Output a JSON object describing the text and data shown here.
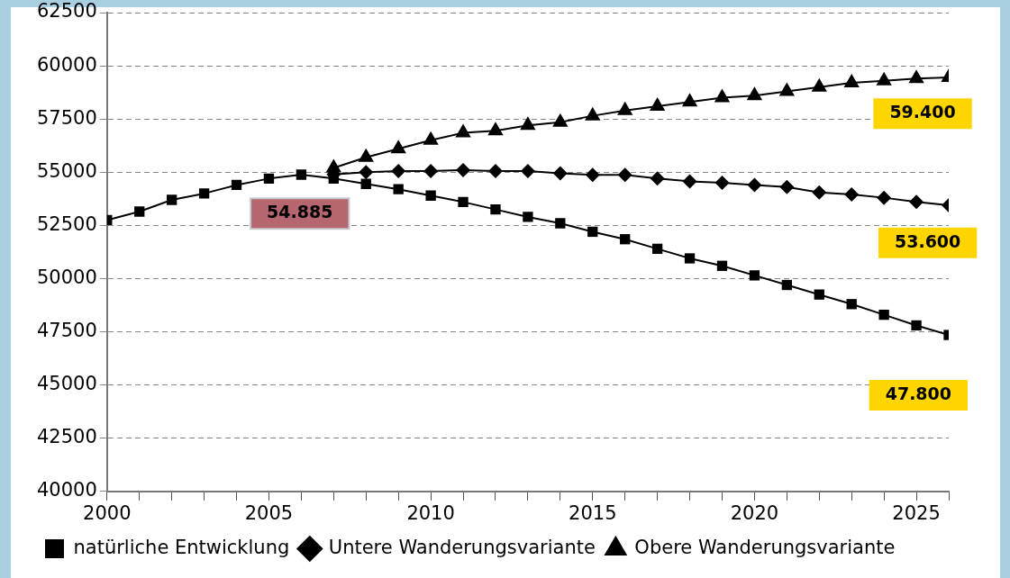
{
  "chart_data": {
    "type": "line",
    "x": [
      2000,
      2001,
      2002,
      2003,
      2004,
      2005,
      2006,
      2007,
      2008,
      2009,
      2010,
      2011,
      2012,
      2013,
      2014,
      2015,
      2016,
      2017,
      2018,
      2019,
      2020,
      2021,
      2022,
      2023,
      2024,
      2025,
      2026
    ],
    "series": [
      {
        "name": "natürliche Entwicklung",
        "color": "#000000",
        "marker": "square",
        "values": [
          52750,
          53150,
          53700,
          54000,
          54400,
          54700,
          54885,
          54700,
          54450,
          54200,
          53900,
          53600,
          53250,
          52900,
          52600,
          52200,
          51850,
          51400,
          50950,
          50600,
          50150,
          49700,
          49250,
          48800,
          48300,
          47800,
          47350
        ]
      },
      {
        "name": "Untere Wanderungsvariante",
        "color": "#000000",
        "marker": "diamond",
        "values": [
          null,
          null,
          null,
          null,
          null,
          null,
          null,
          54900,
          55000,
          55050,
          55050,
          55100,
          55050,
          55050,
          54950,
          54870,
          54870,
          54700,
          54570,
          54500,
          54400,
          54300,
          54050,
          53950,
          53800,
          53600,
          53450
        ]
      },
      {
        "name": "Obere Wanderungsvariante",
        "color": "#000000",
        "marker": "triangle",
        "values": [
          null,
          null,
          null,
          null,
          null,
          null,
          null,
          55200,
          55700,
          56100,
          56500,
          56850,
          56950,
          57200,
          57350,
          57650,
          57900,
          58100,
          58300,
          58500,
          58600,
          58800,
          59000,
          59200,
          59300,
          59400,
          59450
        ]
      }
    ],
    "xlim": [
      2000,
      2026
    ],
    "xticks": [
      2000,
      {
        "value": 2001,
        "label": null
      },
      {
        "value": 2002,
        "label": null
      },
      {
        "value": 2003,
        "label": null
      },
      {
        "value": 2004,
        "label": null
      },
      2005,
      {
        "value": 2006,
        "label": null
      },
      {
        "value": 2007,
        "label": null
      },
      {
        "value": 2008,
        "label": null
      },
      {
        "value": 2009,
        "label": null
      },
      2010,
      {
        "value": 2011,
        "label": null
      },
      {
        "value": 2012,
        "label": null
      },
      {
        "value": 2013,
        "label": null
      },
      {
        "value": 2014,
        "label": null
      },
      2015,
      {
        "value": 2016,
        "label": null
      },
      {
        "value": 2017,
        "label": null
      },
      {
        "value": 2018,
        "label": null
      },
      {
        "value": 2019,
        "label": null
      },
      2020,
      {
        "value": 2021,
        "label": null
      },
      {
        "value": 2022,
        "label": null
      },
      {
        "value": 2023,
        "label": null
      },
      {
        "value": 2024,
        "label": null
      },
      2025,
      {
        "value": 2026,
        "label": null
      }
    ],
    "ylim": [
      40000,
      62500
    ],
    "yticks": [
      40000,
      42500,
      45000,
      47500,
      50000,
      52500,
      55000,
      57500,
      60000,
      62500
    ],
    "grid": "y",
    "legend": "bottom",
    "line_style": "solid",
    "annotations": [
      "54.885",
      "59.400",
      "53.600",
      "47.800"
    ]
  }
}
